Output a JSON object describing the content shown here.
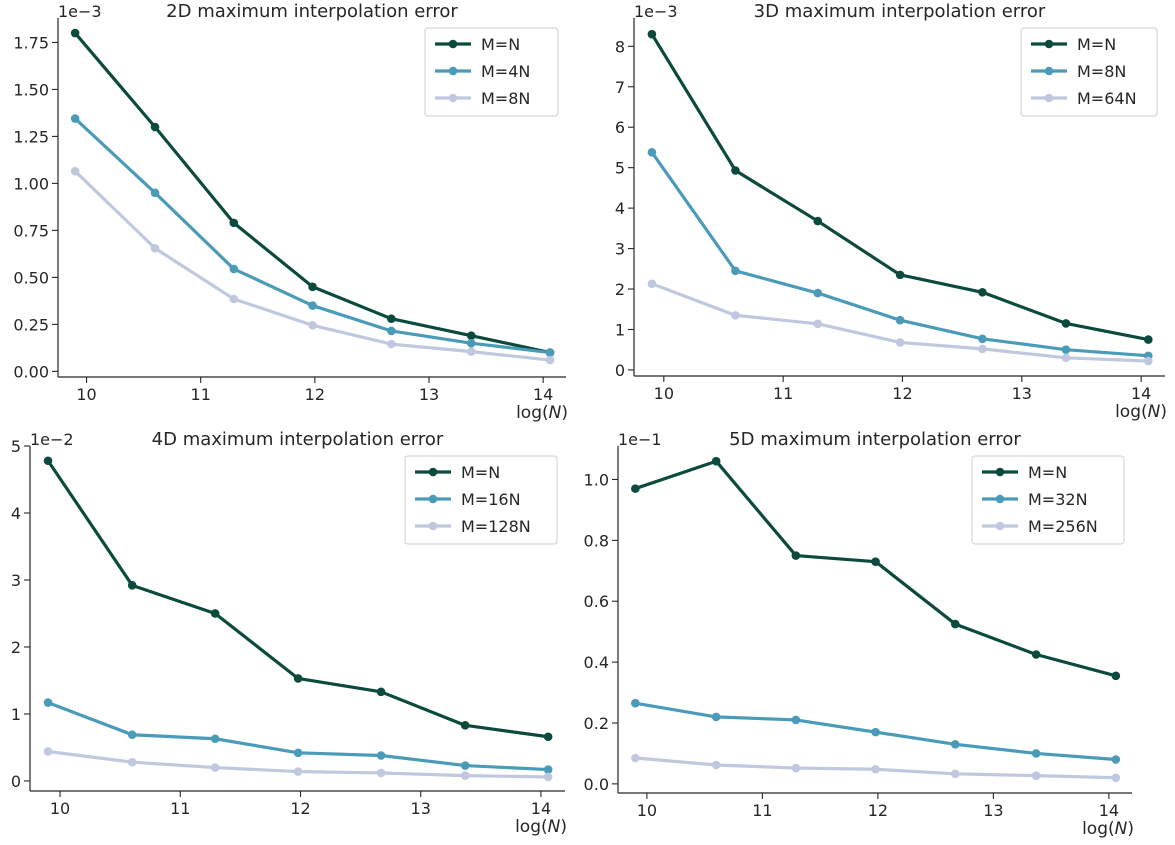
{
  "colors": {
    "dark": "#0b4a3c",
    "mid": "#4a9bb8",
    "light": "#bfc8df"
  },
  "chart_data": [
    {
      "type": "line",
      "title": "2D maximum interpolation error",
      "xlabel_prefix": "log(",
      "xlabel_var": "N",
      "xlabel_suffix": ")",
      "ylabel": "",
      "multiplier": "1e−3",
      "xlim": [
        9.75,
        14.2
      ],
      "ylim": [
        -0.03,
        1.88
      ],
      "xticks": [
        10,
        11,
        12,
        13,
        14
      ],
      "xtick_labels": [
        "10",
        "11",
        "12",
        "13",
        "14"
      ],
      "yticks": [
        0,
        0.25,
        0.5,
        0.75,
        1.0,
        1.25,
        1.5,
        1.75
      ],
      "ytick_labels": [
        "0.00",
        "0.25",
        "0.50",
        "0.75",
        "1.00",
        "1.25",
        "1.50",
        "1.75"
      ],
      "x": [
        9.9,
        10.6,
        11.29,
        11.98,
        12.67,
        13.37,
        14.06
      ],
      "legend_position": "upper-right",
      "series": [
        {
          "name": "M=N",
          "color": "dark",
          "values": [
            1.8,
            1.3,
            0.79,
            0.45,
            0.28,
            0.19,
            0.1
          ]
        },
        {
          "name": "M=4N",
          "color": "mid",
          "values": [
            1.345,
            0.95,
            0.545,
            0.35,
            0.215,
            0.15,
            0.1
          ]
        },
        {
          "name": "M=8N",
          "color": "light",
          "values": [
            1.065,
            0.655,
            0.385,
            0.245,
            0.145,
            0.105,
            0.06
          ]
        }
      ]
    },
    {
      "type": "line",
      "title": "3D maximum interpolation error",
      "xlabel_prefix": "log(",
      "xlabel_var": "N",
      "xlabel_suffix": ")",
      "ylabel": "",
      "multiplier": "1e−3",
      "xlim": [
        9.75,
        14.2
      ],
      "ylim": [
        -0.15,
        8.7
      ],
      "xticks": [
        10,
        11,
        12,
        13,
        14
      ],
      "xtick_labels": [
        "10",
        "11",
        "12",
        "13",
        "14"
      ],
      "yticks": [
        0,
        1,
        2,
        3,
        4,
        5,
        6,
        7,
        8
      ],
      "ytick_labels": [
        "0",
        "1",
        "2",
        "3",
        "4",
        "5",
        "6",
        "7",
        "8"
      ],
      "x": [
        9.9,
        10.6,
        11.29,
        11.98,
        12.67,
        13.37,
        14.06
      ],
      "legend_position": "upper-right",
      "series": [
        {
          "name": "M=N",
          "color": "dark",
          "values": [
            8.3,
            4.93,
            3.68,
            2.35,
            1.92,
            1.15,
            0.75
          ]
        },
        {
          "name": "M=8N",
          "color": "mid",
          "values": [
            5.38,
            2.45,
            1.9,
            1.23,
            0.77,
            0.5,
            0.35
          ]
        },
        {
          "name": "M=64N",
          "color": "light",
          "values": [
            2.13,
            1.35,
            1.14,
            0.68,
            0.52,
            0.3,
            0.22
          ]
        }
      ]
    },
    {
      "type": "line",
      "title": "4D maximum interpolation error",
      "xlabel_prefix": "log(",
      "xlabel_var": "N",
      "xlabel_suffix": ")",
      "ylabel": "",
      "multiplier": "1e−2",
      "xlim": [
        9.75,
        14.2
      ],
      "ylim": [
        -0.15,
        5.0
      ],
      "xticks": [
        10,
        11,
        12,
        13,
        14
      ],
      "xtick_labels": [
        "10",
        "11",
        "12",
        "13",
        "14"
      ],
      "yticks": [
        0,
        1,
        2,
        3,
        4,
        5
      ],
      "ytick_labels": [
        "0",
        "1",
        "2",
        "3",
        "4",
        "5"
      ],
      "x": [
        9.9,
        10.6,
        11.29,
        11.98,
        12.67,
        13.37,
        14.06
      ],
      "legend_position": "upper-right",
      "series": [
        {
          "name": "M=N",
          "color": "dark",
          "values": [
            4.78,
            2.92,
            2.5,
            1.53,
            1.33,
            0.83,
            0.66
          ]
        },
        {
          "name": "M=16N",
          "color": "mid",
          "values": [
            1.17,
            0.69,
            0.63,
            0.42,
            0.38,
            0.23,
            0.17
          ]
        },
        {
          "name": "M=128N",
          "color": "light",
          "values": [
            0.44,
            0.28,
            0.2,
            0.14,
            0.12,
            0.08,
            0.06
          ]
        }
      ]
    },
    {
      "type": "line",
      "title": "5D maximum interpolation error",
      "xlabel_prefix": "log(",
      "xlabel_var": "N",
      "xlabel_suffix": ")",
      "ylabel": "",
      "multiplier": "1e−1",
      "xlim": [
        9.75,
        14.2
      ],
      "ylim": [
        -0.03,
        1.11
      ],
      "xticks": [
        10,
        11,
        12,
        13,
        14
      ],
      "xtick_labels": [
        "10",
        "11",
        "12",
        "13",
        "14"
      ],
      "yticks": [
        0,
        0.2,
        0.4,
        0.6,
        0.8,
        1.0
      ],
      "ytick_labels": [
        "0.0",
        "0.2",
        "0.4",
        "0.6",
        "0.8",
        "1.0"
      ],
      "x": [
        9.9,
        10.6,
        11.29,
        11.98,
        12.67,
        13.37,
        14.06
      ],
      "legend_position": "upper-right",
      "series": [
        {
          "name": "M=N",
          "color": "dark",
          "values": [
            0.97,
            1.06,
            0.75,
            0.73,
            0.525,
            0.425,
            0.355
          ]
        },
        {
          "name": "M=32N",
          "color": "mid",
          "values": [
            0.265,
            0.22,
            0.21,
            0.17,
            0.13,
            0.1,
            0.08
          ]
        },
        {
          "name": "M=256N",
          "color": "light",
          "values": [
            0.085,
            0.062,
            0.052,
            0.048,
            0.033,
            0.027,
            0.02
          ]
        }
      ]
    }
  ]
}
